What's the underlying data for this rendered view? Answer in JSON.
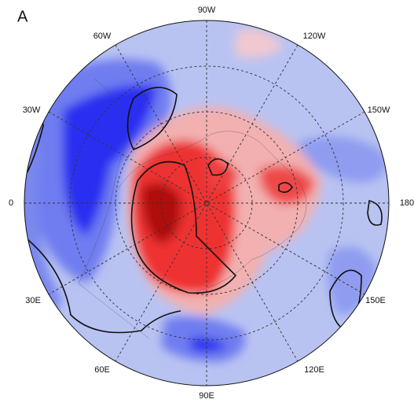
{
  "panel_label": "A",
  "longitude_labels": [
    "90W",
    "60W",
    "120W",
    "30W",
    "150W",
    "0",
    "180",
    "30E",
    "150E",
    "60E",
    "120E",
    "90E"
  ]
}
